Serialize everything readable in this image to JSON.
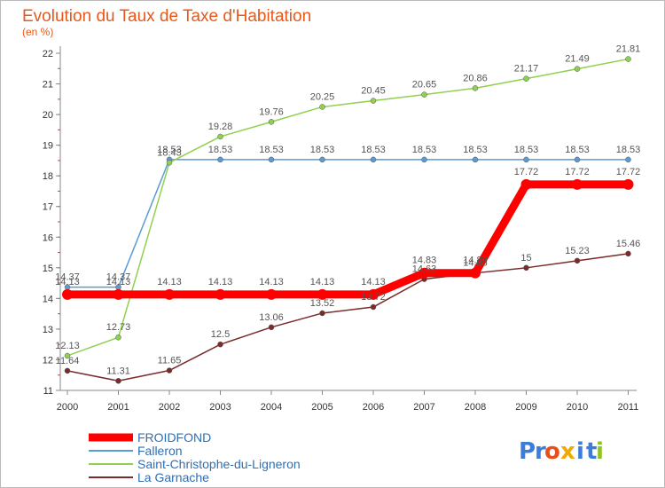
{
  "chart_data": {
    "type": "line",
    "title": "Evolution du Taux de Taxe d'Habitation",
    "subtitle": "(en %)",
    "x": [
      "2000",
      "2001",
      "2002",
      "2003",
      "2004",
      "2005",
      "2006",
      "2007",
      "2008",
      "2009",
      "2010",
      "2011"
    ],
    "ylim": [
      11,
      22
    ],
    "yticks": [
      11,
      12,
      13,
      14,
      15,
      16,
      17,
      18,
      19,
      20,
      21,
      22
    ],
    "grid": false,
    "legend_position": "bottom-left",
    "series": [
      {
        "name": "FROIDFOND",
        "color": "#ff0000",
        "values": [
          14.13,
          14.13,
          14.13,
          14.13,
          14.13,
          14.13,
          14.13,
          14.83,
          14.83,
          17.72,
          17.72,
          17.72
        ],
        "labels": [
          "14.13",
          "14.13",
          "14.13",
          "14.13",
          "14.13",
          "14.13",
          "14.13",
          "14.83",
          "14.83",
          "17.72",
          "17.72",
          "17.72"
        ]
      },
      {
        "name": "Falleron",
        "color": "#5b9bd5",
        "values": [
          14.37,
          14.37,
          18.53,
          18.53,
          18.53,
          18.53,
          18.53,
          18.53,
          18.53,
          18.53,
          18.53,
          18.53
        ],
        "labels": [
          "14.37",
          "14.37",
          "18.53",
          "18.53",
          "18.53",
          "18.53",
          "18.53",
          "18.53",
          "18.53",
          "18.53",
          "18.53",
          "18.53"
        ]
      },
      {
        "name": "Saint-Christophe-du-Ligneron",
        "color": "#8fd14f",
        "values": [
          12.13,
          12.73,
          18.43,
          19.28,
          19.76,
          20.25,
          20.45,
          20.65,
          20.86,
          21.17,
          21.49,
          21.81
        ],
        "labels": [
          "12.13",
          "12.73",
          "18.43",
          "19.28",
          "19.76",
          "20.25",
          "20.45",
          "20.65",
          "20.86",
          "21.17",
          "21.49",
          "21.81"
        ]
      },
      {
        "name": "La Garnache",
        "color": "#7a2b2b",
        "values": [
          11.64,
          11.31,
          11.65,
          12.5,
          13.06,
          13.52,
          13.72,
          14.63,
          14.83,
          15,
          15.23,
          15.46
        ],
        "labels": [
          "11.64",
          "11.31",
          "11.65",
          "12.5",
          "13.06",
          "13.52",
          "13.72",
          "14.63",
          "14.83",
          "15",
          "15.23",
          "15.46"
        ]
      }
    ]
  },
  "brand": {
    "letters": [
      {
        "ch": "P",
        "color": "#3b7dd8"
      },
      {
        "ch": "r",
        "color": "#3b7dd8"
      },
      {
        "ch": "o",
        "color": "#e94e1b"
      },
      {
        "ch": "x",
        "color": "#f2a900"
      },
      {
        "ch": "i",
        "color": "#3b7dd8"
      },
      {
        "ch": "t",
        "color": "#3b7dd8"
      },
      {
        "ch": "i",
        "color": "#8fc31f"
      }
    ]
  }
}
